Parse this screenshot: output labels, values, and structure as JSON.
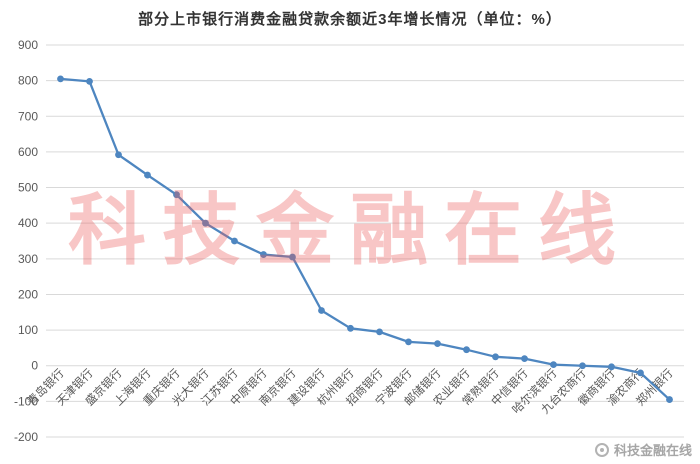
{
  "chart_data": {
    "type": "line",
    "title": "部分上市银行消费金融贷款余额近3年增长情况（单位：%）",
    "categories": [
      "青岛银行",
      "天津银行",
      "盛京银行",
      "上海银行",
      "重庆银行",
      "光大银行",
      "江苏银行",
      "中原银行",
      "南京银行",
      "建设银行",
      "杭州银行",
      "招商银行",
      "宁波银行",
      "邮储银行",
      "农业银行",
      "常熟银行",
      "中信银行",
      "哈尔滨银行",
      "九台农商行",
      "徽商银行",
      "渝农商行",
      "郑州银行"
    ],
    "values": [
      805,
      798,
      592,
      535,
      480,
      400,
      350,
      312,
      305,
      155,
      105,
      95,
      67,
      62,
      45,
      25,
      20,
      3,
      0,
      -3,
      -20,
      -95
    ],
    "xlabel": "",
    "ylabel": "",
    "ylim": [
      -200,
      900
    ],
    "ytick_step": 100,
    "yticks": [
      900,
      800,
      700,
      600,
      500,
      400,
      300,
      200,
      100,
      0,
      -100,
      -200
    ],
    "grid": true,
    "legend_position": "none",
    "line_color": "#4e86c0",
    "marker": "circle",
    "grid_color": "#d9d9d9",
    "axis_text_color": "#595959"
  },
  "watermark": {
    "main_text": "科技金融在线",
    "main_color": "rgba(235, 92, 92, 0.35)",
    "footer_text": "科技金融在线",
    "footer_color": "#a6a6a6"
  }
}
